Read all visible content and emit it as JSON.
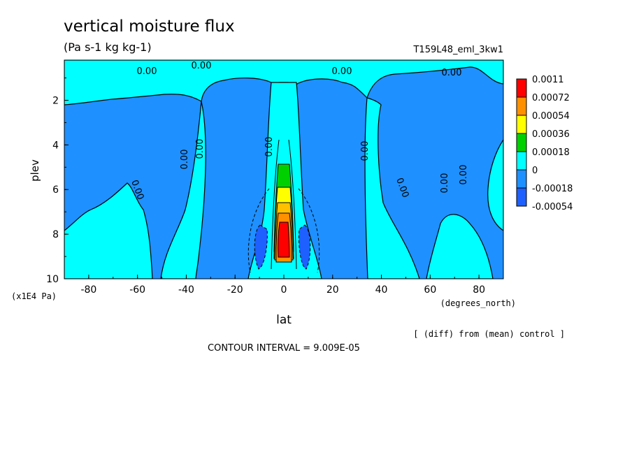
{
  "chart_data": {
    "type": "heatmap",
    "title": "vertical moisture flux",
    "subtitle": "(Pa s-1 kg kg-1)",
    "run_label": "T159L48_eml_3kw1",
    "xlabel": "lat",
    "x_units": "(degrees_north)",
    "ylabel": "plev",
    "y_units": "(x1E4 Pa)",
    "xlim": [
      -90,
      90
    ],
    "ylim": [
      10,
      0.2
    ],
    "x_ticks": [
      -80,
      -60,
      -40,
      -20,
      0,
      20,
      40,
      60,
      80
    ],
    "y_ticks": [
      2,
      4,
      6,
      8,
      10
    ],
    "contour_interval": "CONTOUR INTERVAL = 9.009E-05",
    "diff_note": "[ (diff) from (mean) control ]",
    "contour_label_text": "0.00",
    "legend": {
      "labels": [
        "0.0011",
        "0.00072",
        "0.00054",
        "0.00036",
        "0.00018",
        "0",
        "-0.00018",
        "-0.00054"
      ],
      "colors": [
        "#ff0000",
        "#ff9000",
        "#ffff00",
        "#00d000",
        "#00ffff",
        "#1e90ff",
        "#1e60ff"
      ]
    },
    "colors": {
      "cyan": "#00ffff",
      "blue": "#1e90ff",
      "dark_blue": "#1e60ff",
      "green": "#00d000",
      "yellow": "#ffff00",
      "light_orange": "#ffc000",
      "orange": "#ff9000",
      "red": "#ff0000"
    }
  }
}
